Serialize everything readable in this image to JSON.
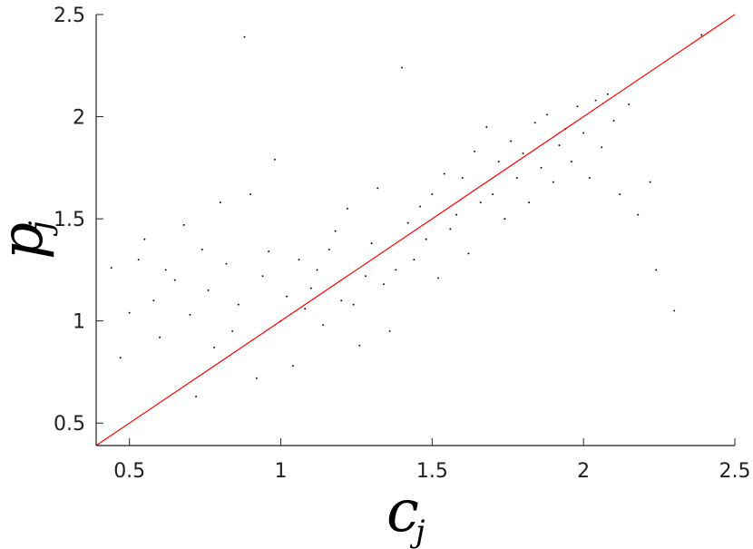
{
  "chart_data": {
    "type": "scatter",
    "title": "",
    "xlabel": "c_j",
    "ylabel": "p_j",
    "xlabel_parts": {
      "base": "c",
      "sub": "j"
    },
    "ylabel_parts": {
      "base": "p",
      "sub": "j"
    },
    "xlim": [
      0.39,
      2.5
    ],
    "ylim": [
      0.39,
      2.5
    ],
    "xticks": [
      0.5,
      1,
      1.5,
      2,
      2.5
    ],
    "yticks": [
      0.5,
      1,
      1.5,
      2,
      2.5
    ],
    "xtick_labels": [
      "0.5",
      "1",
      "1.5",
      "2",
      "2.5"
    ],
    "ytick_labels": [
      "0.5",
      "1",
      "1.5",
      "2",
      "2.5"
    ],
    "grid": false,
    "legend": "none",
    "point_color": "#000000",
    "reference_line": {
      "type": "y=x",
      "color": "#ff0000",
      "x": [
        0.39,
        2.5
      ],
      "y": [
        0.39,
        2.5
      ]
    },
    "series": [
      {
        "points": [
          [
            0.55,
            1.4
          ],
          [
            0.58,
            1.1
          ],
          [
            0.6,
            0.92
          ],
          [
            0.62,
            1.25
          ],
          [
            0.65,
            1.2
          ],
          [
            0.68,
            1.47
          ],
          [
            0.7,
            1.03
          ],
          [
            0.72,
            0.63
          ],
          [
            0.74,
            1.35
          ],
          [
            0.76,
            1.15
          ],
          [
            0.78,
            0.87
          ],
          [
            0.8,
            1.58
          ],
          [
            0.82,
            1.28
          ],
          [
            0.84,
            0.95
          ],
          [
            0.86,
            1.08
          ],
          [
            0.88,
            2.39
          ],
          [
            0.9,
            1.62
          ],
          [
            0.92,
            0.72
          ],
          [
            0.94,
            1.22
          ],
          [
            0.96,
            1.34
          ],
          [
            0.98,
            1.79
          ],
          [
            1.0,
            1.0
          ],
          [
            1.02,
            1.12
          ],
          [
            1.04,
            0.78
          ],
          [
            1.06,
            1.3
          ],
          [
            1.08,
            1.06
          ],
          [
            1.1,
            1.16
          ],
          [
            1.12,
            1.25
          ],
          [
            1.14,
            0.98
          ],
          [
            1.16,
            1.35
          ],
          [
            1.18,
            1.44
          ],
          [
            1.2,
            1.1
          ],
          [
            1.22,
            1.55
          ],
          [
            1.24,
            1.08
          ],
          [
            1.26,
            0.88
          ],
          [
            1.28,
            1.22
          ],
          [
            1.3,
            1.38
          ],
          [
            1.32,
            1.65
          ],
          [
            1.34,
            1.18
          ],
          [
            1.36,
            0.95
          ],
          [
            1.38,
            1.25
          ],
          [
            1.4,
            2.24
          ],
          [
            1.42,
            1.48
          ],
          [
            1.44,
            1.3
          ],
          [
            1.46,
            1.56
          ],
          [
            1.48,
            1.4
          ],
          [
            1.5,
            1.62
          ],
          [
            1.52,
            1.21
          ],
          [
            1.54,
            1.72
          ],
          [
            1.56,
            1.45
          ],
          [
            1.58,
            1.52
          ],
          [
            1.6,
            1.7
          ],
          [
            1.62,
            1.33
          ],
          [
            1.64,
            1.83
          ],
          [
            1.66,
            1.58
          ],
          [
            1.68,
            1.95
          ],
          [
            1.7,
            1.62
          ],
          [
            1.72,
            1.78
          ],
          [
            1.74,
            1.5
          ],
          [
            1.76,
            1.88
          ],
          [
            1.78,
            1.7
          ],
          [
            1.8,
            1.82
          ],
          [
            1.82,
            1.58
          ],
          [
            1.84,
            1.97
          ],
          [
            1.86,
            1.75
          ],
          [
            1.88,
            2.01
          ],
          [
            1.9,
            1.68
          ],
          [
            1.92,
            1.86
          ],
          [
            1.94,
            1.94
          ],
          [
            1.96,
            1.78
          ],
          [
            1.98,
            2.05
          ],
          [
            2.0,
            1.92
          ],
          [
            2.02,
            1.7
          ],
          [
            2.04,
            2.08
          ],
          [
            2.06,
            1.85
          ],
          [
            2.08,
            2.11
          ],
          [
            2.1,
            1.98
          ],
          [
            2.12,
            1.62
          ],
          [
            2.18,
            1.52
          ],
          [
            2.22,
            1.68
          ],
          [
            2.3,
            1.05
          ],
          [
            2.39,
            2.4
          ],
          [
            0.44,
            1.26
          ],
          [
            0.47,
            0.82
          ],
          [
            0.5,
            1.04
          ],
          [
            0.53,
            1.3
          ],
          [
            2.15,
            2.06
          ],
          [
            2.24,
            1.25
          ]
        ]
      }
    ]
  }
}
